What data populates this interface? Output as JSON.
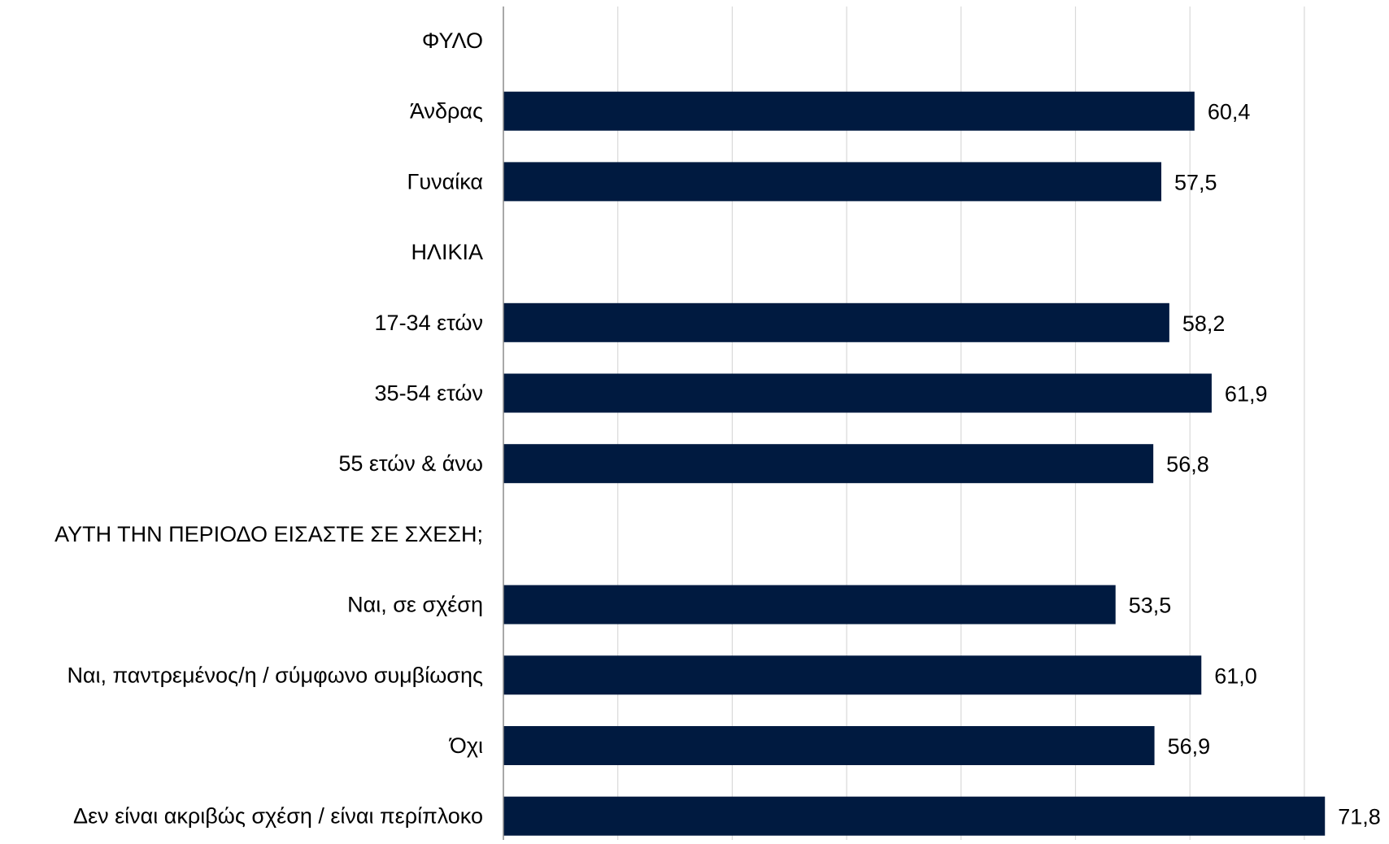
{
  "chart_data": {
    "type": "bar",
    "orientation": "horizontal",
    "categories": [
      "ΦΥΛΟ",
      "Άνδρας",
      "Γυναίκα",
      "ΗΛΙΚΙΑ",
      "17-34 ετών",
      "35-54 ετών",
      "55 ετών & άνω",
      "ΑΥΤΗ ΤΗΝ ΠΕΡΙΟΔΟ ΕΙΣΑΣΤΕ ΣΕ ΣΧΕΣΗ;",
      "Ναι, σε σχέση",
      "Ναι, παντρεμένος/η / σύμφωνο συμβίωσης",
      "Όχι",
      "Δεν είναι ακριβώς σχέση / είναι περίπλοκο"
    ],
    "values": [
      null,
      60.4,
      57.5,
      null,
      58.2,
      61.9,
      56.8,
      null,
      53.5,
      61.0,
      56.9,
      71.8
    ],
    "value_labels": [
      "",
      "60,4",
      "57,5",
      "",
      "58,2",
      "61,9",
      "56,8",
      "",
      "53,5",
      "61,0",
      "56,9",
      "71,8"
    ],
    "xlim": [
      0,
      80
    ],
    "gridline_step": 10,
    "grid": true,
    "legend": "none",
    "title": "",
    "xlabel": "",
    "ylabel": "",
    "colors": {
      "bar": "#001a40",
      "gridline": "#d9d9d9",
      "axis": "#8c8c8c"
    }
  }
}
